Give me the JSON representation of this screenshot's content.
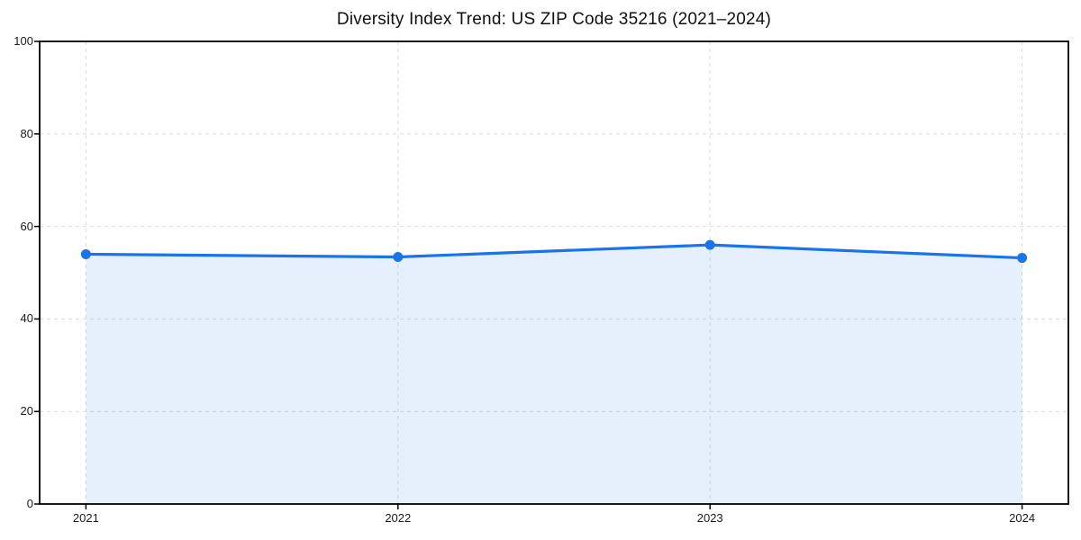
{
  "title": "Diversity Index Trend: US ZIP Code 35216 (2021–2024)",
  "chart_data": {
    "type": "area",
    "title": "Diversity Index Trend: US ZIP Code 35216 (2021–2024)",
    "categories": [
      "2021",
      "2022",
      "2023",
      "2024"
    ],
    "series": [
      {
        "name": "Diversity Index",
        "values": [
          54.0,
          53.4,
          56.0,
          53.2
        ]
      }
    ],
    "xlabel": "",
    "ylabel": "",
    "ylim": [
      0,
      100
    ],
    "yticks": [
      0,
      20,
      40,
      60,
      80,
      100
    ],
    "grid": "dashed",
    "legend": "none",
    "colors": {
      "line": "#1a73e8",
      "marker": "#1a73e8",
      "fill": "#1a73e8",
      "fill_opacity": 0.11,
      "grid": "#dcdcdc",
      "axis": "#000000",
      "text": "#1a1a1a",
      "background": "#ffffff"
    }
  }
}
